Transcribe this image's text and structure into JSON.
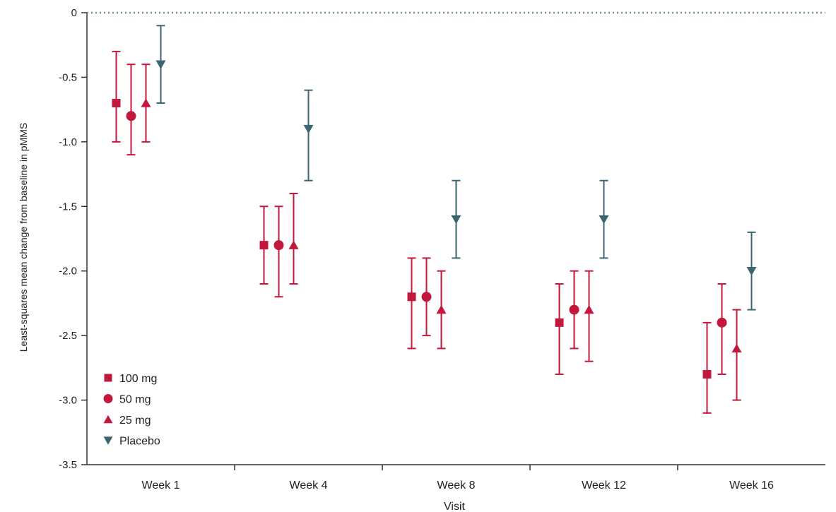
{
  "chart_data": {
    "type": "scatter",
    "xlabel": "Visit",
    "ylabel": "Least-squares mean change from baseline in pMMS",
    "ylim": [
      -3.5,
      0
    ],
    "yticks": [
      0,
      -0.5,
      -1.0,
      -1.5,
      -2.0,
      -2.5,
      -3.0,
      -3.5
    ],
    "ytick_labels": [
      "0",
      "-0.5",
      "-1.0",
      "-1.5",
      "-2.0",
      "-2.5",
      "-3.0",
      "-3.5"
    ],
    "categories": [
      "Week 1",
      "Week 4",
      "Week 8",
      "Week 12",
      "Week 16"
    ],
    "reference_line": {
      "y": 0,
      "style": "dotted"
    },
    "grid": false,
    "legend": "bottom-left",
    "series": [
      {
        "name": "100 mg",
        "marker": "square",
        "color": "#c4173c",
        "values": [
          -0.7,
          -1.8,
          -2.2,
          -2.4,
          -2.8
        ],
        "ci_low": [
          -1.0,
          -2.1,
          -2.6,
          -2.8,
          -3.1
        ],
        "ci_high": [
          -0.3,
          -1.5,
          -1.9,
          -2.1,
          -2.4
        ]
      },
      {
        "name": "50 mg",
        "marker": "circle",
        "color": "#c4173c",
        "values": [
          -0.8,
          -1.8,
          -2.2,
          -2.3,
          -2.4
        ],
        "ci_low": [
          -1.1,
          -2.2,
          -2.5,
          -2.6,
          -2.8
        ],
        "ci_high": [
          -0.4,
          -1.5,
          -1.9,
          -2.0,
          -2.1
        ]
      },
      {
        "name": "25 mg",
        "marker": "triangle-up",
        "color": "#c4173c",
        "values": [
          -0.7,
          -1.8,
          -2.3,
          -2.3,
          -2.6
        ],
        "ci_low": [
          -1.0,
          -2.1,
          -2.6,
          -2.7,
          -3.0
        ],
        "ci_high": [
          -0.4,
          -1.4,
          -2.0,
          -2.0,
          -2.3
        ]
      },
      {
        "name": "Placebo",
        "marker": "triangle-down",
        "color": "#3d6472",
        "values": [
          -0.4,
          -0.9,
          -1.6,
          -1.6,
          -2.0
        ],
        "ci_low": [
          -0.7,
          -1.3,
          -1.9,
          -1.9,
          -2.3
        ],
        "ci_high": [
          -0.1,
          -0.6,
          -1.3,
          -1.3,
          -1.7
        ]
      }
    ]
  }
}
